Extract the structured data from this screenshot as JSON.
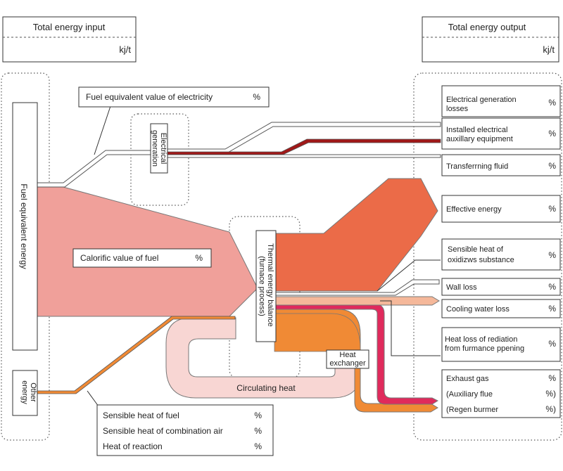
{
  "header": {
    "input_title": "Total energy input",
    "input_unit": "kj/t",
    "output_title": "Total energy output",
    "output_unit": "kj/t"
  },
  "inputs": {
    "fuel_equivalent_energy": "Fuel equivalent energy",
    "other_energy": "Other energy",
    "fuel_equiv_electricity": "Fuel equivalent value of electricity",
    "calorific_value": "Calorific value of fuel",
    "sensible_heat_fuel": "Sensible heat of fuel",
    "sensible_heat_air": "Sensible heat of combination air",
    "heat_of_reaction": "Heat of reaction"
  },
  "process": {
    "electrical_generation": "Electrical generation",
    "thermal_balance_line1": "Thermal energy balance",
    "thermal_balance_line2": "(furnace process)",
    "heat_exchanger_line1": "Heat",
    "heat_exchanger_line2": "exchanger",
    "circulating_heat": "Circulating heat"
  },
  "outputs": {
    "elec_gen_losses_1": "Electrical generation",
    "elec_gen_losses_2": "losses",
    "installed_aux_1": "Installed electrical",
    "installed_aux_2": "auxillary equipment",
    "transferring_fluid": "Transferrning fluid",
    "effective_energy": "Effective energy",
    "sensible_oxid_1": "Sensible heat of",
    "sensible_oxid_2": "oxidizws substance",
    "wall_loss": "Wall loss",
    "cooling_water_loss": "Cooling water loss",
    "radiation_loss_1": "Heat loss of rediation",
    "radiation_loss_2": "from furmance ppening",
    "exhaust_gas": "Exhaust  gas",
    "aux_flue": "(Auxiliary flue",
    "regen_burner": "(Regen burmer"
  },
  "units": {
    "percent": "%",
    "percent_paren": "%)"
  },
  "colors": {
    "calorific": "#f0a09a",
    "effective": "#eb6b48",
    "exhaust": "#f08a35",
    "aux_flue": "#e02a5c",
    "cooling": "#f5b89a",
    "circulating": "#f8d6d3",
    "electric": "#a01818"
  }
}
